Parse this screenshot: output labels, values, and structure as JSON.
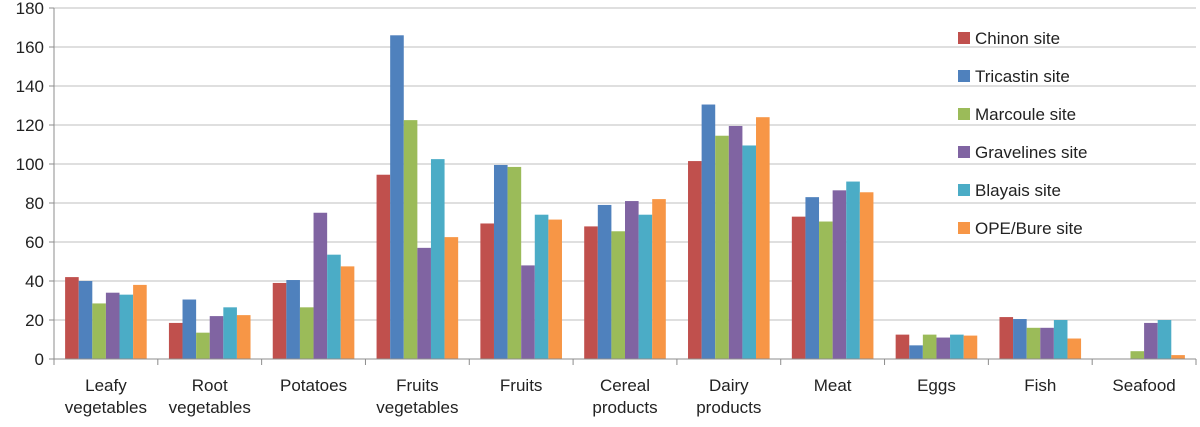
{
  "chart_data": {
    "type": "bar",
    "title": "",
    "xlabel": "",
    "ylabel": "",
    "ylim": [
      0,
      180
    ],
    "yticks": [
      0,
      20,
      40,
      60,
      80,
      100,
      120,
      140,
      160,
      180
    ],
    "grid": true,
    "legend_position": "top-right",
    "categories": [
      [
        "Leafy",
        "vegetables"
      ],
      [
        "Root",
        "vegetables"
      ],
      [
        "Potatoes"
      ],
      [
        "Fruits",
        "vegetables"
      ],
      [
        "Fruits"
      ],
      [
        "Cereal",
        "products"
      ],
      [
        "Dairy",
        "products"
      ],
      [
        "Meat"
      ],
      [
        "Eggs"
      ],
      [
        "Fish"
      ],
      [
        "Seafood"
      ]
    ],
    "series": [
      {
        "name": "Chinon site",
        "color": "#c0504d",
        "values": [
          42,
          18.5,
          39,
          94.5,
          69.5,
          68,
          101.5,
          73,
          12.5,
          21.5,
          null
        ]
      },
      {
        "name": "Tricastin site",
        "color": "#4f81bd",
        "values": [
          40,
          30.5,
          40.5,
          166,
          99.5,
          79,
          130.5,
          83,
          7,
          20.5,
          null
        ]
      },
      {
        "name": "Marcoule site",
        "color": "#9bbb59",
        "values": [
          28.5,
          13.5,
          26.5,
          122.5,
          98.5,
          65.5,
          114.5,
          70.5,
          12.5,
          16,
          4
        ]
      },
      {
        "name": "Gravelines site",
        "color": "#8064a2",
        "values": [
          34,
          22,
          75,
          57,
          48,
          81,
          119.5,
          86.5,
          11,
          16,
          18.5
        ]
      },
      {
        "name": "Blayais site",
        "color": "#4bacc6",
        "values": [
          33,
          26.5,
          53.5,
          102.5,
          74,
          74,
          109.5,
          91,
          12.5,
          20,
          20
        ]
      },
      {
        "name": "OPE/Bure site",
        "color": "#f79646",
        "values": [
          38,
          22.5,
          47.5,
          62.5,
          71.5,
          82,
          124,
          85.5,
          12,
          10.5,
          2
        ]
      }
    ]
  }
}
